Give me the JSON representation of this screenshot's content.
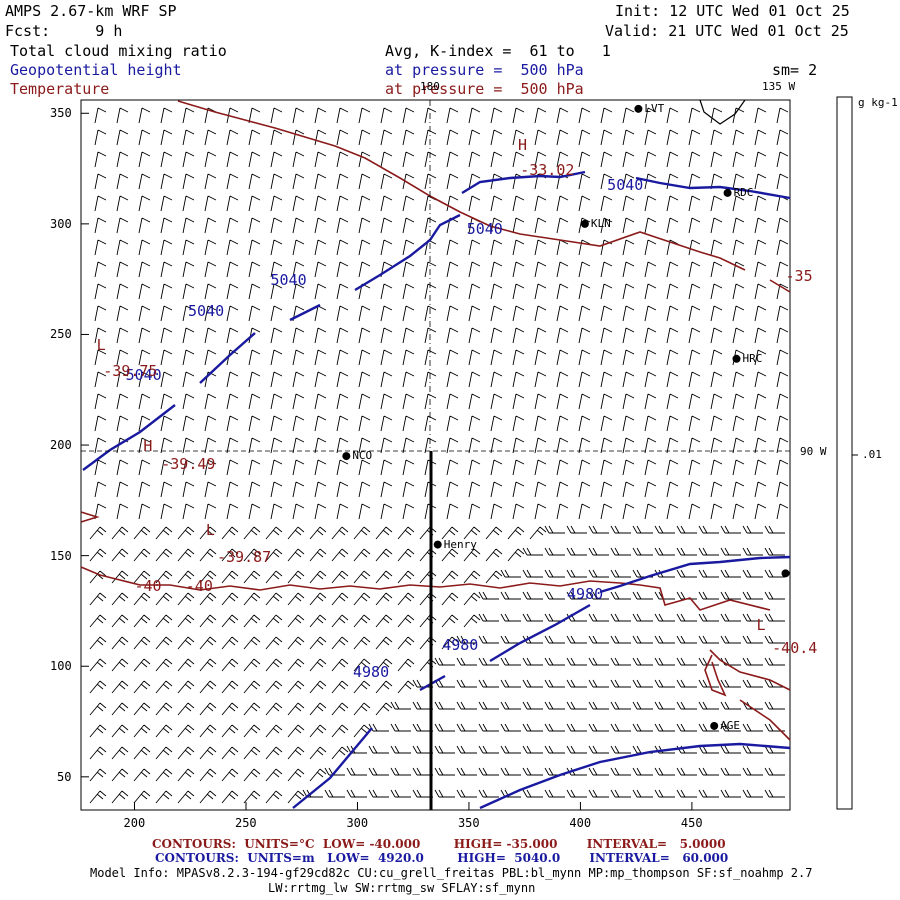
{
  "header": {
    "model": "AMPS 2.67-km WRF SP",
    "fcst": "Fcst:     9 h",
    "init": "Init: 12 UTC Wed 01 Oct 25",
    "valid": "Valid: 21 UTC Wed 01 Oct 25",
    "field1": "Total cloud mixing ratio",
    "field2": "Geopotential height",
    "field3": "Temperature",
    "avg": "Avg, K-index =  61 to   1",
    "pressure1": "at pressure =  500 hPa",
    "pressure2": "at pressure =  500 hPa",
    "sm": "sm= 2"
  },
  "colors": {
    "height": "#1a1aa0",
    "temperature": "#8b1a1a",
    "ink": "#000000"
  },
  "axes": {
    "x_ticks": [
      200,
      250,
      300,
      350,
      400,
      450
    ],
    "y_ticks": [
      50,
      100,
      150,
      200,
      250,
      300,
      350
    ],
    "x_range": [
      176,
      494
    ],
    "y_range": [
      35,
      356
    ]
  },
  "grid_lines": {
    "lon_180": "180",
    "lon_135": "135 W",
    "lon_90": "90 W"
  },
  "colorbar": {
    "unit": "g kg-1",
    "tick": ".01"
  },
  "stations": [
    {
      "name": "LVT",
      "x": 426,
      "y": 352
    },
    {
      "name": "RDC",
      "x": 466,
      "y": 314
    },
    {
      "name": "KLN",
      "x": 402,
      "y": 300
    },
    {
      "name": "HRC",
      "x": 470,
      "y": 239
    },
    {
      "name": "NCO",
      "x": 295,
      "y": 195
    },
    {
      "name": "Henry",
      "x": 336,
      "y": 155
    },
    {
      "name": "",
      "x": 492,
      "y": 142
    },
    {
      "name": "AGE",
      "x": 460,
      "y": 73
    }
  ],
  "height_labels": [
    {
      "text": "5040",
      "x": 412,
      "y": 317
    },
    {
      "text": "5040",
      "x": 349,
      "y": 297
    },
    {
      "text": "5040",
      "x": 261,
      "y": 274
    },
    {
      "text": "5040",
      "x": 224,
      "y": 260
    },
    {
      "text": "5040",
      "x": 196,
      "y": 231
    },
    {
      "text": "4980",
      "x": 394,
      "y": 132
    },
    {
      "text": "4980",
      "x": 338,
      "y": 109
    },
    {
      "text": "4980",
      "x": 298,
      "y": 97
    }
  ],
  "temp_labels": [
    {
      "text": "H",
      "x": 372,
      "y": 335
    },
    {
      "text": "-33.02",
      "x": 373,
      "y": 324
    },
    {
      "text": "-35",
      "x": 492,
      "y": 276
    },
    {
      "text": "L",
      "x": 183,
      "y": 245
    },
    {
      "text": "-39.75",
      "x": 186,
      "y": 233
    },
    {
      "text": "H",
      "x": 204,
      "y": 199
    },
    {
      "text": "-39.49",
      "x": 212,
      "y": 191
    },
    {
      "text": "L",
      "x": 232,
      "y": 161
    },
    {
      "text": "-39.87",
      "x": 237,
      "y": 149
    },
    {
      "text": "-40",
      "x": 200,
      "y": 136
    },
    {
      "text": "-40",
      "x": 223,
      "y": 136
    },
    {
      "text": "L",
      "x": 479,
      "y": 118
    },
    {
      "text": "-40.4",
      "x": 486,
      "y": 108
    }
  ],
  "footer": {
    "contours_temp": "CONTOURS:  UNITS=°C  LOW= -40.000        HIGH= -35.000       INTERVAL=   5.0000",
    "contours_height": "CONTOURS:  UNITS=m   LOW=  4920.0        HIGH=  5040.0       INTERVAL=   60.000",
    "model_info": "Model Info: MPASv8.2.3-194-gf29cd82c CU:cu_grell_freitas PBL:bl_mynn MP:mp_thompson SF:sf_noahmp 2.7",
    "model_info2": "LW:rrtmg_lw SW:rrtmg_sw SFLAY:sf_mynn"
  }
}
